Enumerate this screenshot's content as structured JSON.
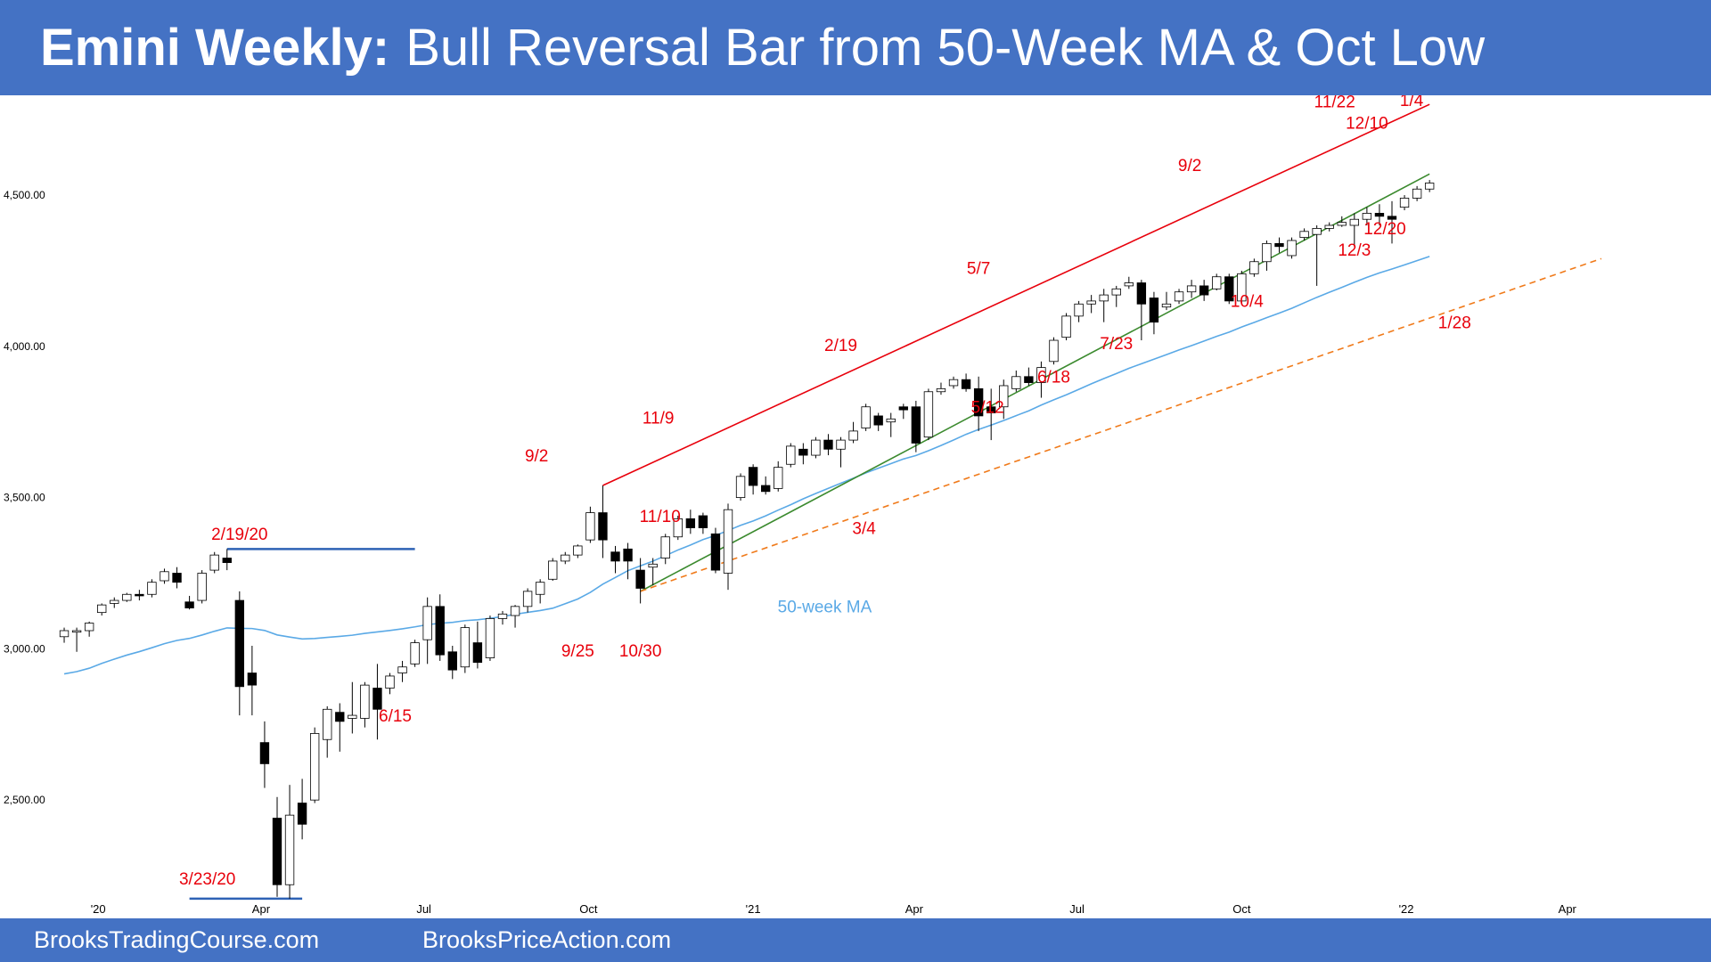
{
  "title": {
    "bold": "Emini Weekly:",
    "rest": "Bull Reversal Bar from 50-Week MA & Oct Low"
  },
  "footer": {
    "left": "BrooksTradingCourse.com",
    "right": "BrooksPriceAction.com"
  },
  "colors": {
    "banner": "#4472c4",
    "label": "#e8000b",
    "channel_top": "#e8000b",
    "channel_bottom": "#3b8a2e",
    "trendline": "#f07a1a",
    "ma": "#5aa9e6",
    "support": "#2e62b5",
    "bull_body": "#ffffff",
    "bear_body": "#000000"
  },
  "chart_data": {
    "type": "candlestick",
    "timeframe": "weekly",
    "x_domain": [
      "2019-12-09",
      "2022-04-28"
    ],
    "y_range": [
      2150,
      4830
    ],
    "y_ticks": [
      {
        "value": 2500,
        "label": "2,500.00"
      },
      {
        "value": 3000,
        "label": "3,000.00"
      },
      {
        "value": 3500,
        "label": "3,500.00"
      },
      {
        "value": 4000,
        "label": "4,000.00"
      },
      {
        "value": 4500,
        "label": "4,500.00"
      }
    ],
    "x_ticks": [
      {
        "date": "2020-01-01",
        "label": "'20"
      },
      {
        "date": "2020-04-01",
        "label": "Apr"
      },
      {
        "date": "2020-07-01",
        "label": "Jul"
      },
      {
        "date": "2020-10-01",
        "label": "Oct"
      },
      {
        "date": "2021-01-01",
        "label": "'21"
      },
      {
        "date": "2021-04-01",
        "label": "Apr"
      },
      {
        "date": "2021-07-01",
        "label": "Jul"
      },
      {
        "date": "2021-10-01",
        "label": "Oct"
      },
      {
        "date": "2022-01-01",
        "label": "'22"
      },
      {
        "date": "2022-04-01",
        "label": "Apr"
      }
    ],
    "bars": [
      {
        "date": "2019-12-13",
        "o": 3040,
        "h": 3070,
        "l": 3020,
        "c": 3060
      },
      {
        "date": "2019-12-20",
        "o": 3055,
        "h": 3070,
        "l": 2990,
        "c": 3060
      },
      {
        "date": "2019-12-27",
        "o": 3060,
        "h": 3090,
        "l": 3040,
        "c": 3085
      },
      {
        "date": "2020-01-03",
        "o": 3120,
        "h": 3150,
        "l": 3110,
        "c": 3145
      },
      {
        "date": "2020-01-10",
        "o": 3150,
        "h": 3170,
        "l": 3135,
        "c": 3160
      },
      {
        "date": "2020-01-17",
        "o": 3160,
        "h": 3185,
        "l": 3155,
        "c": 3180
      },
      {
        "date": "2020-01-24",
        "o": 3180,
        "h": 3195,
        "l": 3160,
        "c": 3175
      },
      {
        "date": "2020-01-31",
        "o": 3180,
        "h": 3230,
        "l": 3170,
        "c": 3220
      },
      {
        "date": "2020-02-07",
        "o": 3225,
        "h": 3265,
        "l": 3215,
        "c": 3255
      },
      {
        "date": "2020-02-14",
        "o": 3250,
        "h": 3270,
        "l": 3200,
        "c": 3220
      },
      {
        "date": "2020-02-21",
        "o": 3155,
        "h": 3175,
        "l": 3130,
        "c": 3135
      },
      {
        "date": "2020-02-28",
        "o": 3160,
        "h": 3260,
        "l": 3150,
        "c": 3250
      },
      {
        "date": "2020-03-06",
        "o": 3260,
        "h": 3320,
        "l": 3250,
        "c": 3310
      },
      {
        "date": "2020-03-13",
        "o": 3300,
        "h": 3330,
        "l": 3260,
        "c": 3285
      },
      {
        "date": "2020-03-20",
        "o": 3160,
        "h": 3190,
        "l": 2780,
        "c": 2875
      },
      {
        "date": "2020-03-27",
        "o": 2920,
        "h": 3010,
        "l": 2780,
        "c": 2880
      },
      {
        "date": "2020-04-03",
        "o": 2690,
        "h": 2760,
        "l": 2540,
        "c": 2620
      },
      {
        "date": "2020-04-10",
        "o": 2440,
        "h": 2510,
        "l": 2180,
        "c": 2220
      },
      {
        "date": "2020-04-17",
        "o": 2220,
        "h": 2550,
        "l": 2174,
        "c": 2450
      },
      {
        "date": "2020-04-24",
        "o": 2490,
        "h": 2570,
        "l": 2370,
        "c": 2420
      },
      {
        "date": "2020-05-01",
        "o": 2500,
        "h": 2740,
        "l": 2490,
        "c": 2720
      },
      {
        "date": "2020-05-08",
        "o": 2700,
        "h": 2810,
        "l": 2640,
        "c": 2800
      },
      {
        "date": "2020-05-15",
        "o": 2790,
        "h": 2820,
        "l": 2660,
        "c": 2760
      },
      {
        "date": "2020-05-22",
        "o": 2770,
        "h": 2890,
        "l": 2720,
        "c": 2780
      },
      {
        "date": "2020-05-29",
        "o": 2770,
        "h": 2890,
        "l": 2740,
        "c": 2880
      },
      {
        "date": "2020-06-05",
        "o": 2870,
        "h": 2950,
        "l": 2700,
        "c": 2800
      },
      {
        "date": "2020-06-12",
        "o": 2870,
        "h": 2920,
        "l": 2850,
        "c": 2910
      },
      {
        "date": "2020-06-19",
        "o": 2920,
        "h": 2960,
        "l": 2890,
        "c": 2940
      },
      {
        "date": "2020-06-26",
        "o": 2950,
        "h": 3030,
        "l": 2940,
        "c": 3020
      },
      {
        "date": "2020-07-03",
        "o": 3030,
        "h": 3170,
        "l": 2950,
        "c": 3140
      },
      {
        "date": "2020-07-10",
        "o": 3140,
        "h": 3180,
        "l": 2960,
        "c": 2980
      },
      {
        "date": "2020-07-17",
        "o": 2990,
        "h": 3010,
        "l": 2900,
        "c": 2930
      },
      {
        "date": "2020-07-24",
        "o": 2940,
        "h": 3080,
        "l": 2920,
        "c": 3070
      },
      {
        "date": "2020-07-31",
        "o": 3020,
        "h": 3090,
        "l": 2935,
        "c": 2955
      },
      {
        "date": "2020-08-07",
        "o": 2970,
        "h": 3110,
        "l": 2960,
        "c": 3100
      },
      {
        "date": "2020-08-14",
        "o": 3100,
        "h": 3125,
        "l": 3080,
        "c": 3115
      },
      {
        "date": "2020-08-21",
        "o": 3110,
        "h": 3145,
        "l": 3070,
        "c": 3140
      },
      {
        "date": "2020-08-28",
        "o": 3140,
        "h": 3200,
        "l": 3120,
        "c": 3190
      },
      {
        "date": "2020-09-04",
        "o": 3180,
        "h": 3230,
        "l": 3150,
        "c": 3220
      },
      {
        "date": "2020-09-11",
        "o": 3230,
        "h": 3300,
        "l": 3225,
        "c": 3290
      },
      {
        "date": "2020-09-18",
        "o": 3290,
        "h": 3320,
        "l": 3280,
        "c": 3310
      },
      {
        "date": "2020-09-25",
        "o": 3310,
        "h": 3345,
        "l": 3300,
        "c": 3340
      },
      {
        "date": "2020-10-02",
        "o": 3360,
        "h": 3470,
        "l": 3350,
        "c": 3450
      },
      {
        "date": "2020-10-09",
        "o": 3450,
        "h": 3540,
        "l": 3300,
        "c": 3360
      },
      {
        "date": "2020-10-16",
        "o": 3320,
        "h": 3340,
        "l": 3250,
        "c": 3290
      },
      {
        "date": "2020-10-23",
        "o": 3330,
        "h": 3350,
        "l": 3230,
        "c": 3290
      },
      {
        "date": "2020-10-30",
        "o": 3260,
        "h": 3300,
        "l": 3150,
        "c": 3200
      },
      {
        "date": "2020-11-06",
        "o": 3270,
        "h": 3300,
        "l": 3210,
        "c": 3280
      },
      {
        "date": "2020-11-13",
        "o": 3300,
        "h": 3380,
        "l": 3280,
        "c": 3370
      },
      {
        "date": "2020-11-20",
        "o": 3370,
        "h": 3440,
        "l": 3360,
        "c": 3430
      },
      {
        "date": "2020-11-27",
        "o": 3430,
        "h": 3460,
        "l": 3380,
        "c": 3400
      },
      {
        "date": "2020-12-04",
        "o": 3440,
        "h": 3450,
        "l": 3380,
        "c": 3400
      },
      {
        "date": "2020-12-11",
        "o": 3380,
        "h": 3400,
        "l": 3250,
        "c": 3260
      },
      {
        "date": "2020-12-18",
        "o": 3250,
        "h": 3480,
        "l": 3195,
        "c": 3460
      },
      {
        "date": "2020-12-25",
        "o": 3500,
        "h": 3580,
        "l": 3490,
        "c": 3570
      },
      {
        "date": "2021-01-01",
        "o": 3600,
        "h": 3610,
        "l": 3510,
        "c": 3540
      },
      {
        "date": "2021-01-08",
        "o": 3540,
        "h": 3570,
        "l": 3510,
        "c": 3520
      },
      {
        "date": "2021-01-15",
        "o": 3530,
        "h": 3620,
        "l": 3520,
        "c": 3600
      },
      {
        "date": "2021-01-22",
        "o": 3610,
        "h": 3680,
        "l": 3600,
        "c": 3670
      },
      {
        "date": "2021-01-29",
        "o": 3660,
        "h": 3680,
        "l": 3610,
        "c": 3640
      },
      {
        "date": "2021-02-05",
        "o": 3640,
        "h": 3700,
        "l": 3630,
        "c": 3690
      },
      {
        "date": "2021-02-12",
        "o": 3690,
        "h": 3710,
        "l": 3640,
        "c": 3660
      },
      {
        "date": "2021-02-19",
        "o": 3660,
        "h": 3700,
        "l": 3600,
        "c": 3690
      },
      {
        "date": "2021-02-26",
        "o": 3690,
        "h": 3750,
        "l": 3680,
        "c": 3720
      },
      {
        "date": "2021-03-05",
        "o": 3730,
        "h": 3810,
        "l": 3720,
        "c": 3800
      },
      {
        "date": "2021-03-12",
        "o": 3770,
        "h": 3780,
        "l": 3720,
        "c": 3740
      },
      {
        "date": "2021-03-19",
        "o": 3750,
        "h": 3780,
        "l": 3700,
        "c": 3760
      },
      {
        "date": "2021-03-26",
        "o": 3800,
        "h": 3810,
        "l": 3760,
        "c": 3790
      },
      {
        "date": "2021-04-02",
        "o": 3800,
        "h": 3820,
        "l": 3650,
        "c": 3680
      },
      {
        "date": "2021-04-09",
        "o": 3700,
        "h": 3860,
        "l": 3690,
        "c": 3850
      },
      {
        "date": "2021-04-16",
        "o": 3850,
        "h": 3880,
        "l": 3840,
        "c": 3860
      },
      {
        "date": "2021-04-23",
        "o": 3870,
        "h": 3900,
        "l": 3860,
        "c": 3890
      },
      {
        "date": "2021-04-30",
        "o": 3890,
        "h": 3910,
        "l": 3850,
        "c": 3860
      },
      {
        "date": "2021-05-07",
        "o": 3860,
        "h": 3900,
        "l": 3720,
        "c": 3770
      },
      {
        "date": "2021-05-14",
        "o": 3800,
        "h": 3860,
        "l": 3690,
        "c": 3780
      },
      {
        "date": "2021-05-21",
        "o": 3800,
        "h": 3890,
        "l": 3760,
        "c": 3870
      },
      {
        "date": "2021-05-28",
        "o": 3860,
        "h": 3920,
        "l": 3850,
        "c": 3900
      },
      {
        "date": "2021-06-04",
        "o": 3900,
        "h": 3930,
        "l": 3870,
        "c": 3880
      },
      {
        "date": "2021-06-11",
        "o": 3880,
        "h": 3950,
        "l": 3830,
        "c": 3930
      },
      {
        "date": "2021-06-18",
        "o": 3950,
        "h": 4030,
        "l": 3940,
        "c": 4020
      },
      {
        "date": "2021-06-25",
        "o": 4030,
        "h": 4110,
        "l": 4020,
        "c": 4100
      },
      {
        "date": "2021-07-02",
        "o": 4100,
        "h": 4150,
        "l": 4080,
        "c": 4140
      },
      {
        "date": "2021-07-09",
        "o": 4140,
        "h": 4170,
        "l": 4110,
        "c": 4150
      },
      {
        "date": "2021-07-16",
        "o": 4150,
        "h": 4190,
        "l": 4080,
        "c": 4170
      },
      {
        "date": "2021-07-23",
        "o": 4170,
        "h": 4200,
        "l": 4130,
        "c": 4190
      },
      {
        "date": "2021-07-30",
        "o": 4200,
        "h": 4230,
        "l": 4190,
        "c": 4210
      },
      {
        "date": "2021-08-06",
        "o": 4210,
        "h": 4220,
        "l": 4020,
        "c": 4140
      },
      {
        "date": "2021-08-13",
        "o": 4160,
        "h": 4180,
        "l": 4040,
        "c": 4080
      },
      {
        "date": "2021-08-20",
        "o": 4130,
        "h": 4180,
        "l": 4120,
        "c": 4140
      },
      {
        "date": "2021-08-27",
        "o": 4150,
        "h": 4190,
        "l": 4140,
        "c": 4180
      },
      {
        "date": "2021-09-03",
        "o": 4180,
        "h": 4220,
        "l": 4160,
        "c": 4200
      },
      {
        "date": "2021-09-10",
        "o": 4200,
        "h": 4220,
        "l": 4150,
        "c": 4170
      },
      {
        "date": "2021-09-17",
        "o": 4190,
        "h": 4240,
        "l": 4185,
        "c": 4230
      },
      {
        "date": "2021-09-24",
        "o": 4230,
        "h": 4240,
        "l": 4140,
        "c": 4150
      },
      {
        "date": "2021-10-01",
        "o": 4150,
        "h": 4250,
        "l": 4140,
        "c": 4240
      },
      {
        "date": "2021-10-08",
        "o": 4240,
        "h": 4290,
        "l": 4230,
        "c": 4280
      },
      {
        "date": "2021-10-15",
        "o": 4280,
        "h": 4350,
        "l": 4250,
        "c": 4340
      },
      {
        "date": "2021-10-22",
        "o": 4340,
        "h": 4360,
        "l": 4310,
        "c": 4330
      },
      {
        "date": "2021-10-29",
        "o": 4300,
        "h": 4360,
        "l": 4290,
        "c": 4350
      },
      {
        "date": "2021-11-05",
        "o": 4360,
        "h": 4390,
        "l": 4350,
        "c": 4380
      },
      {
        "date": "2021-11-12",
        "o": 4370,
        "h": 4400,
        "l": 4200,
        "c": 4390
      },
      {
        "date": "2021-11-19",
        "o": 4390,
        "h": 4410,
        "l": 4380,
        "c": 4400
      },
      {
        "date": "2021-11-26",
        "o": 4400,
        "h": 4430,
        "l": 4395,
        "c": 4410
      },
      {
        "date": "2021-12-03",
        "o": 4400,
        "h": 4440,
        "l": 4330,
        "c": 4420
      },
      {
        "date": "2021-12-10",
        "o": 4420,
        "h": 4460,
        "l": 4400,
        "c": 4440
      },
      {
        "date": "2021-12-17",
        "o": 4440,
        "h": 4470,
        "l": 4400,
        "c": 4430
      },
      {
        "date": "2021-12-24",
        "o": 4430,
        "h": 4480,
        "l": 4340,
        "c": 4420
      },
      {
        "date": "2021-12-31",
        "o": 4460,
        "h": 4500,
        "l": 4450,
        "c": 4490
      },
      {
        "date": "2022-01-07",
        "o": 4490,
        "h": 4530,
        "l": 4480,
        "c": 4520
      },
      {
        "date": "2022-01-14",
        "o": 4520,
        "h": 4550,
        "l": 4510,
        "c": 4540
      }
    ]
  },
  "labels": {
    "peak_11_22": "11/22",
    "peak_1_4": "1/4",
    "top_12_10": "12/10",
    "top_9_2_21": "9/2",
    "top_5_7": "5/7",
    "top_2_19": "2/19",
    "top_11_9": "11/9",
    "top_9_2_20": "9/2",
    "prior_high": "2/19/20",
    "label_12_20": "12/20",
    "label_12_3": "12/3",
    "label_10_4": "10/4",
    "label_1_28": "1/28",
    "label_7_23": "7/23",
    "label_6_18": "6/18",
    "label_5_12": "5/12",
    "label_3_4": "3/4",
    "label_11_10": "11/10",
    "label_9_25": "9/25",
    "label_10_30": "10/30",
    "label_6_15": "6/15",
    "covid_low": "3/23/20",
    "ma_label": "50-week MA"
  }
}
